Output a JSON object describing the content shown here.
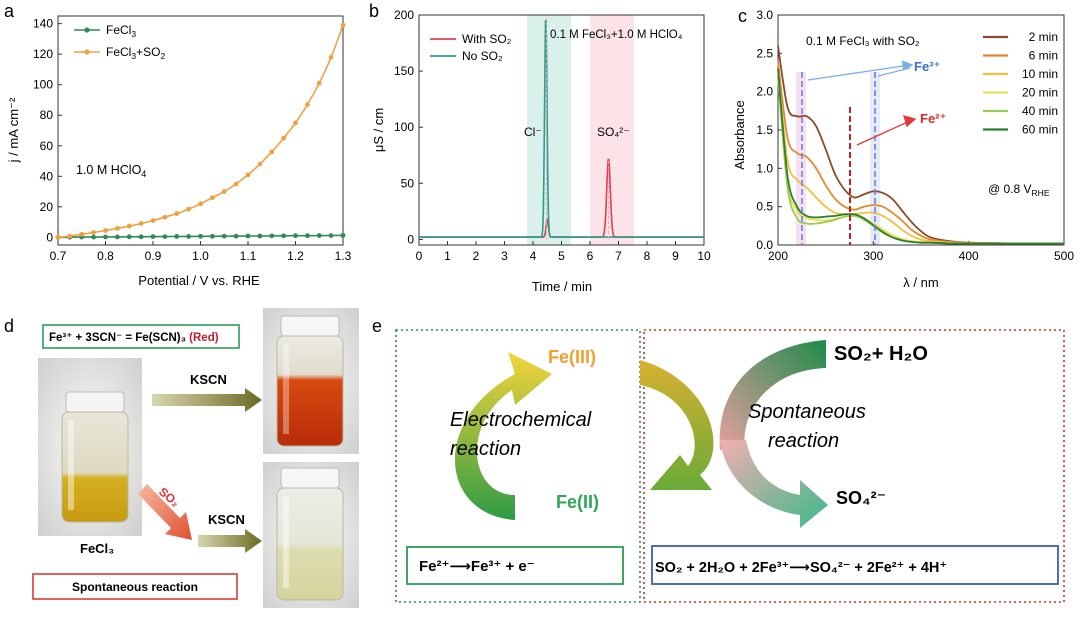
{
  "panels": {
    "a": {
      "letter": "a",
      "annotation_main": "1.0 M HClO",
      "annotation_sub": "4",
      "ylabel": "j / mA cm⁻²",
      "xlabel": "Potential / V vs. RHE",
      "legend": [
        {
          "main": "FeCl",
          "sub": "3",
          "rest": ""
        },
        {
          "main": "FeCl",
          "sub": "3",
          "rest": "+SO",
          "sub2": "2"
        }
      ]
    },
    "b": {
      "letter": "b",
      "annotation": "0.1 M FeCl₃+1.0 M HClO₄",
      "peak_cl": "Cl⁻",
      "peak_so4": "SO₄²⁻",
      "ylabel": "μS / cm",
      "xlabel": "Time / min",
      "legend": [
        "With SO₂",
        "No SO₂"
      ]
    },
    "c": {
      "letter": "c",
      "annotation": "0.1 M FeCl₃ with SO₂",
      "fe3_label": "Fe³⁺",
      "fe2_label": "Fe²⁺",
      "potential_note": "@ 0.8 V",
      "potential_sub": "RHE",
      "ylabel": "Absorbance",
      "xlabel": "λ / nm",
      "legend": [
        "2 min",
        "6 min",
        "10 min",
        "20 min",
        "40 min",
        "60 min"
      ]
    },
    "d": {
      "letter": "d",
      "equation": "Fe³⁺ + 3SCN⁻ = Fe(SCN)₃",
      "equation_red": "(Red)",
      "reagent_top": "KSCN",
      "reagent_bottom": "KSCN",
      "so2": "SO₂",
      "vial_label": "FeCl₃",
      "spontaneous_box": "Spontaneous reaction"
    },
    "e": {
      "letter": "e",
      "fe3": "Fe(III)",
      "fe2": "Fe(II)",
      "electro_1": "Electrochemical",
      "electro_2": "reaction",
      "spont_1": "Spontaneous",
      "spont_2": "reaction",
      "so2_h2o": "SO₂+ H₂O",
      "so4": "SO₄²⁻",
      "eq_left": "Fe²⁺⟶Fe³⁺ +  e⁻",
      "eq_right": "SO₂ + 2H₂O + 2Fe³⁺⟶SO₄²⁻ + 2Fe²⁺ + 4H⁺"
    }
  },
  "colors": {
    "feCl3": "#2e8b57",
    "feCl3_so2": "#f0a040",
    "with_so2": "#e04050",
    "no_so2": "#2a9d8f",
    "c_series": [
      "#8b4a2b",
      "#e08a30",
      "#f2c040",
      "#e8e050",
      "#9acd52",
      "#2e7d32"
    ]
  },
  "chart_data": [
    {
      "type": "line",
      "panel": "a",
      "xlim": [
        0.7,
        1.3
      ],
      "ylim": [
        -5,
        145
      ],
      "xticks": [
        0.7,
        0.8,
        0.9,
        1.0,
        1.1,
        1.2,
        1.3
      ],
      "yticks": [
        0,
        20,
        40,
        60,
        80,
        100,
        120,
        140
      ],
      "series": [
        {
          "name": "FeCl3",
          "x": [
            0.7,
            0.725,
            0.75,
            0.775,
            0.8,
            0.825,
            0.85,
            0.875,
            0.9,
            0.925,
            0.95,
            0.975,
            1.0,
            1.025,
            1.05,
            1.075,
            1.1,
            1.125,
            1.15,
            1.175,
            1.2,
            1.225,
            1.25,
            1.275,
            1.3
          ],
          "y": [
            0,
            0.1,
            0.2,
            0.2,
            0.3,
            0.3,
            0.4,
            0.4,
            0.5,
            0.5,
            0.6,
            0.6,
            0.7,
            0.7,
            0.8,
            0.8,
            0.9,
            0.9,
            1.0,
            1.0,
            1.1,
            1.1,
            1.2,
            1.2,
            1.3
          ]
        },
        {
          "name": "FeCl3+SO2",
          "x": [
            0.7,
            0.725,
            0.75,
            0.775,
            0.8,
            0.825,
            0.85,
            0.875,
            0.9,
            0.925,
            0.95,
            0.975,
            1.0,
            1.025,
            1.05,
            1.075,
            1.1,
            1.125,
            1.15,
            1.175,
            1.2,
            1.225,
            1.25,
            1.275,
            1.3
          ],
          "y": [
            0,
            0.8,
            2,
            3.2,
            4.5,
            5.9,
            7.4,
            9.1,
            11,
            13.2,
            15.6,
            18.5,
            22,
            26,
            30,
            35,
            41,
            48,
            56,
            65,
            75,
            87,
            101,
            118,
            139
          ]
        }
      ]
    },
    {
      "type": "line",
      "panel": "b",
      "xlim": [
        0,
        10
      ],
      "ylim": [
        -5,
        200
      ],
      "xticks": [
        0,
        1,
        2,
        3,
        4,
        5,
        6,
        7,
        8,
        9,
        10
      ],
      "yticks": [
        0,
        50,
        100,
        150,
        200
      ],
      "series": [
        {
          "name": "With SO₂",
          "peaks": [
            {
              "x": 4.5,
              "height": 15,
              "width": 0.06
            },
            {
              "x": 6.65,
              "height": 70,
              "width": 0.09
            }
          ],
          "baseline": 2
        },
        {
          "name": "No SO₂",
          "peaks": [
            {
              "x": 4.45,
              "height": 198,
              "width": 0.06
            }
          ],
          "baseline": 2
        }
      ]
    },
    {
      "type": "line",
      "panel": "c",
      "xlim": [
        200,
        500
      ],
      "ylim": [
        0,
        3.0
      ],
      "xticks": [
        200,
        300,
        400,
        500
      ],
      "yticks": [
        0.0,
        0.5,
        1.0,
        1.5,
        2.0,
        2.5,
        3.0
      ],
      "series": [
        {
          "name": "2 min",
          "x": [
            200,
            210,
            220,
            230,
            240,
            250,
            260,
            270,
            280,
            290,
            300,
            310,
            320,
            330,
            340,
            350,
            360,
            380,
            400,
            450,
            500
          ],
          "y": [
            2.6,
            1.8,
            1.68,
            1.68,
            1.55,
            1.25,
            0.92,
            0.72,
            0.62,
            0.66,
            0.7,
            0.68,
            0.6,
            0.45,
            0.3,
            0.18,
            0.1,
            0.05,
            0.03,
            0.02,
            0.02
          ]
        },
        {
          "name": "6 min",
          "x": [
            200,
            210,
            220,
            230,
            240,
            250,
            260,
            270,
            280,
            290,
            300,
            310,
            320,
            330,
            340,
            350,
            360,
            380,
            400,
            450,
            500
          ],
          "y": [
            2.4,
            1.4,
            1.2,
            1.15,
            1.0,
            0.78,
            0.6,
            0.5,
            0.46,
            0.5,
            0.52,
            0.5,
            0.42,
            0.32,
            0.2,
            0.12,
            0.07,
            0.04,
            0.03,
            0.02,
            0.02
          ]
        },
        {
          "name": "10 min",
          "x": [
            200,
            210,
            220,
            230,
            240,
            250,
            260,
            270,
            280,
            290,
            300,
            310,
            320,
            330,
            340,
            350,
            360,
            380,
            400,
            450,
            500
          ],
          "y": [
            2.3,
            1.1,
            0.85,
            0.75,
            0.62,
            0.5,
            0.42,
            0.4,
            0.4,
            0.42,
            0.42,
            0.38,
            0.3,
            0.2,
            0.12,
            0.07,
            0.05,
            0.03,
            0.02,
            0.02,
            0.02
          ]
        },
        {
          "name": "20 min",
          "x": [
            200,
            210,
            220,
            230,
            240,
            250,
            260,
            270,
            280,
            290,
            300,
            310,
            320,
            330,
            340,
            350,
            360,
            380,
            400,
            450,
            500
          ],
          "y": [
            2.2,
            0.8,
            0.45,
            0.35,
            0.33,
            0.32,
            0.34,
            0.37,
            0.38,
            0.34,
            0.28,
            0.2,
            0.13,
            0.08,
            0.05,
            0.04,
            0.03,
            0.02,
            0.02,
            0.02,
            0.02
          ]
        },
        {
          "name": "40 min",
          "x": [
            200,
            210,
            220,
            230,
            240,
            250,
            260,
            270,
            280,
            290,
            300,
            310,
            320,
            330,
            340,
            350,
            360,
            380,
            400,
            450,
            500
          ],
          "y": [
            2.2,
            0.75,
            0.35,
            0.28,
            0.28,
            0.3,
            0.33,
            0.37,
            0.38,
            0.33,
            0.25,
            0.16,
            0.1,
            0.06,
            0.04,
            0.03,
            0.03,
            0.02,
            0.02,
            0.02,
            0.02
          ]
        },
        {
          "name": "60 min",
          "x": [
            200,
            210,
            220,
            230,
            240,
            250,
            260,
            270,
            280,
            290,
            300,
            310,
            320,
            330,
            340,
            350,
            360,
            380,
            400,
            450,
            500
          ],
          "y": [
            2.3,
            0.9,
            0.5,
            0.38,
            0.36,
            0.37,
            0.38,
            0.4,
            0.4,
            0.35,
            0.26,
            0.17,
            0.1,
            0.06,
            0.04,
            0.03,
            0.03,
            0.02,
            0.02,
            0.02,
            0.02
          ]
        }
      ]
    }
  ]
}
